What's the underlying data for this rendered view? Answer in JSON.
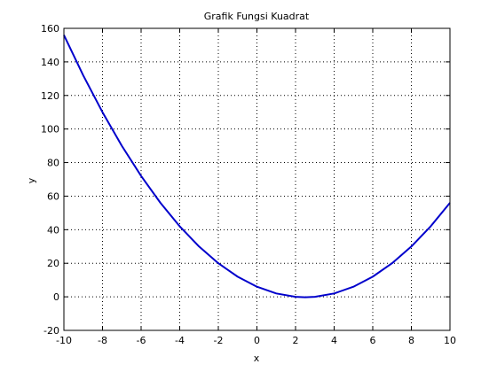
{
  "chart_data": {
    "type": "line",
    "title": "Grafik Fungsi Kuadrat",
    "xlabel": "x",
    "ylabel": "y",
    "xlim": [
      -10,
      10
    ],
    "ylim": [
      -20,
      160
    ],
    "xticks": [
      -10,
      -8,
      -6,
      -4,
      -2,
      0,
      2,
      4,
      6,
      8,
      10
    ],
    "yticks": [
      -20,
      0,
      20,
      40,
      60,
      80,
      100,
      120,
      140,
      160
    ],
    "xtick_labels": [
      "-10",
      "-8",
      "-6",
      "-4",
      "-2",
      "0",
      "2",
      "4",
      "6",
      "8",
      "10"
    ],
    "ytick_labels": [
      "-20",
      "0",
      "20",
      "40",
      "60",
      "80",
      "100",
      "120",
      "140",
      "160"
    ],
    "grid": true,
    "series": [
      {
        "color": "#0000cc",
        "x": [
          -10,
          -9,
          -8,
          -7,
          -6,
          -5,
          -4,
          -3,
          -2,
          -1,
          0,
          1,
          2,
          2.5,
          3,
          4,
          5,
          6,
          7,
          8,
          9,
          10
        ],
        "y": [
          156,
          132,
          110,
          90,
          72,
          56,
          42,
          30,
          20,
          12,
          6,
          2,
          0,
          -0.25,
          0,
          2,
          6,
          12,
          20,
          30,
          42,
          56
        ]
      }
    ]
  }
}
